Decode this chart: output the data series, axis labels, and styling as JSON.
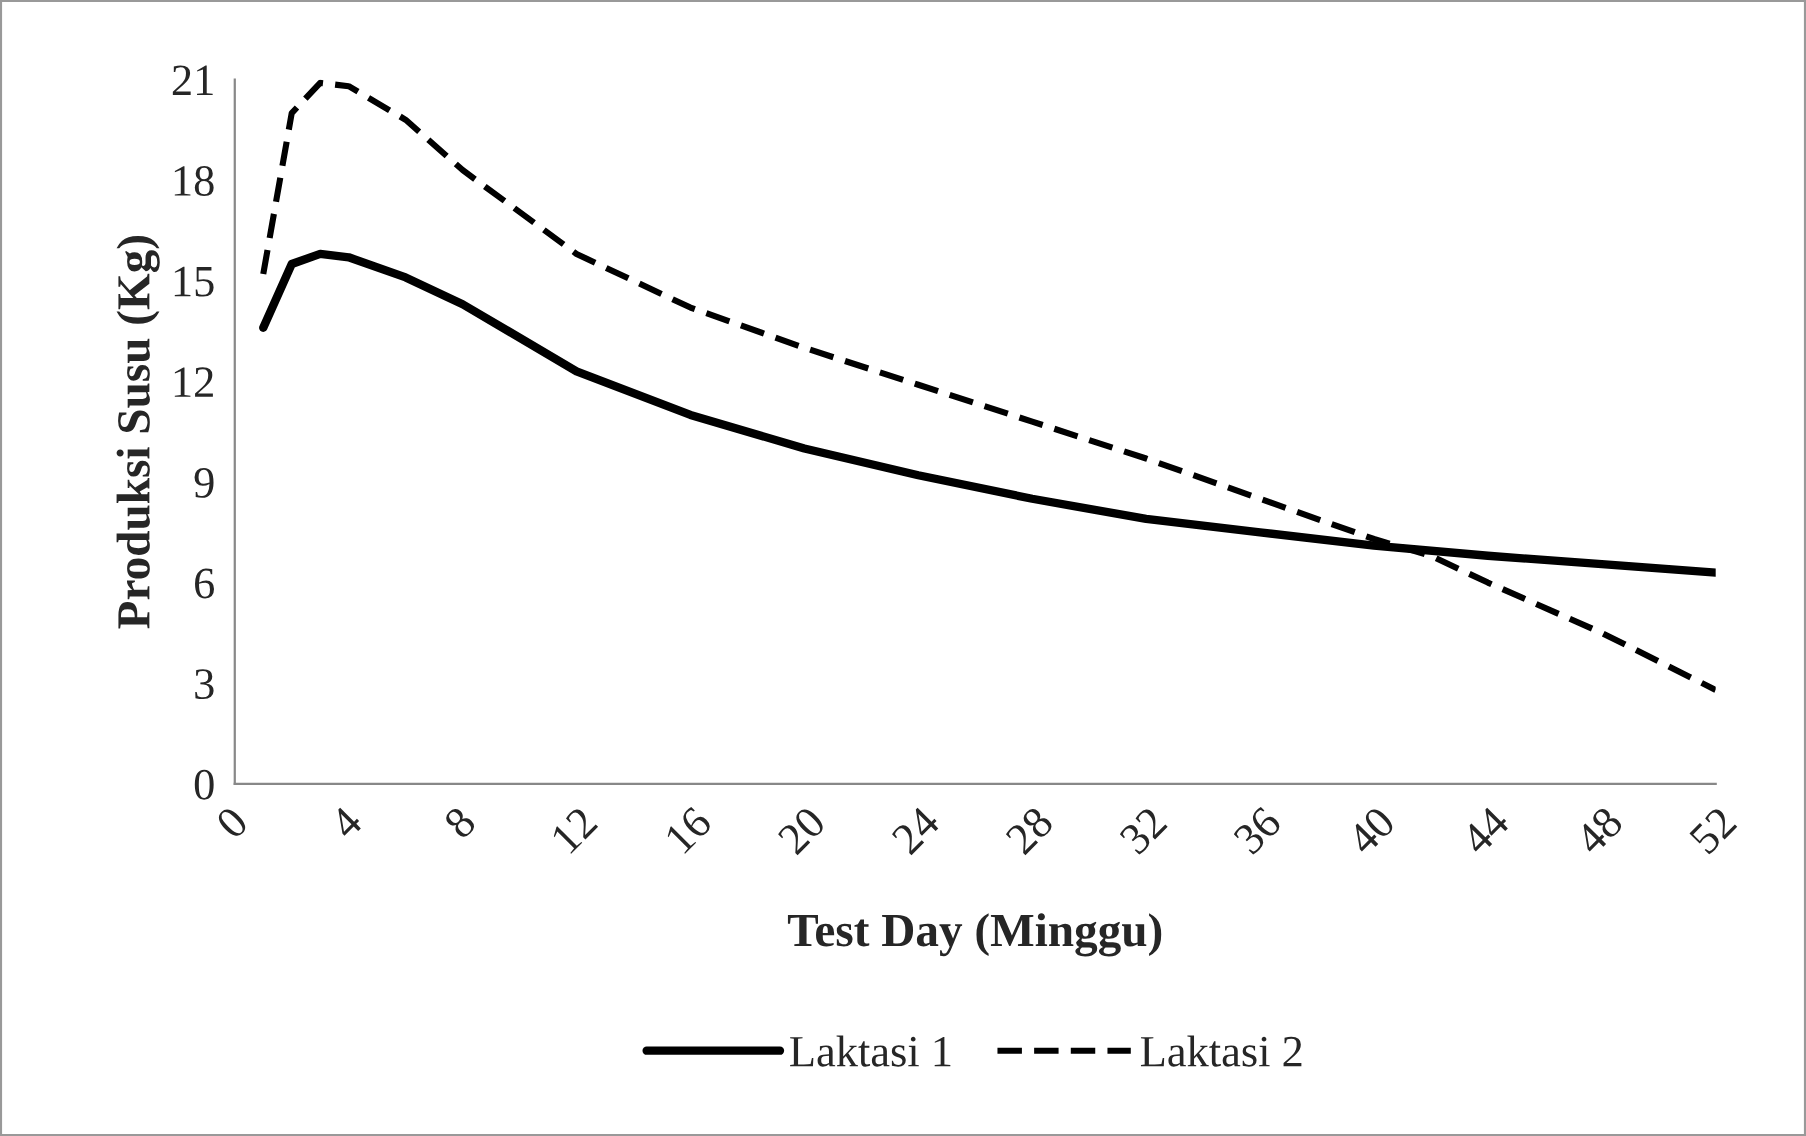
{
  "chart_data": {
    "type": "line",
    "xlabel": "Test Day (Minggu)",
    "ylabel": "Produksi Susu (Kg)",
    "xlim": [
      0,
      52
    ],
    "xticks": [
      0,
      4,
      8,
      12,
      16,
      20,
      24,
      28,
      32,
      36,
      40,
      44,
      48,
      52
    ],
    "ylim": [
      0,
      21
    ],
    "yticks": [
      0,
      3,
      6,
      9,
      12,
      15,
      18,
      21
    ],
    "grid": false,
    "legend": "bottom",
    "series": [
      {
        "name": "Laktasi 1",
        "color": "#000000",
        "line_style": "solid",
        "x": [
          1,
          2,
          3,
          4,
          6,
          8,
          12,
          16,
          20,
          24,
          28,
          32,
          36,
          40,
          44,
          48,
          52
        ],
        "values": [
          13.6,
          15.5,
          15.8,
          15.7,
          15.1,
          14.3,
          12.3,
          11.0,
          10.0,
          9.2,
          8.5,
          7.9,
          7.5,
          7.1,
          6.8,
          6.55,
          6.3
        ]
      },
      {
        "name": "Laktasi 2",
        "color": "#000000",
        "line_style": "dashed",
        "x": [
          1,
          2,
          3,
          4,
          6,
          8,
          12,
          16,
          20,
          24,
          28,
          32,
          36,
          40,
          42,
          44,
          48,
          52
        ],
        "values": [
          15.2,
          20.0,
          20.9,
          20.8,
          19.8,
          18.3,
          15.8,
          14.2,
          13.0,
          11.9,
          10.8,
          9.7,
          8.5,
          7.3,
          6.8,
          6.0,
          4.5,
          2.8
        ]
      }
    ]
  }
}
